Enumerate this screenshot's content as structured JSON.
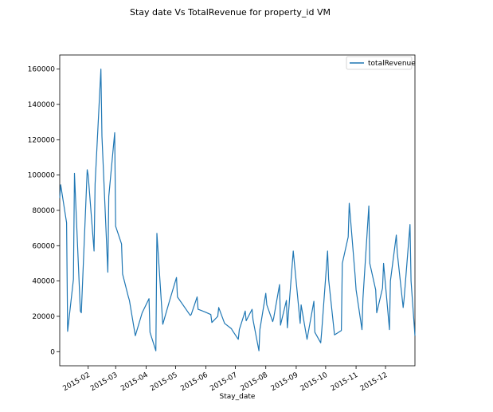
{
  "chart_data": {
    "type": "line",
    "title": "Stay date Vs TotalRevenue for property_id VM",
    "xlabel": "Stay_date",
    "ylabel": "",
    "xlim": [
      "2015-01-03",
      "2015-12-31"
    ],
    "ylim": [
      -8000,
      168000
    ],
    "yticks": [
      0,
      20000,
      40000,
      60000,
      80000,
      100000,
      120000,
      140000,
      160000
    ],
    "xticks": [
      {
        "date": "2015-02-01",
        "label": "2015-02"
      },
      {
        "date": "2015-03-01",
        "label": "2015-03"
      },
      {
        "date": "2015-04-01",
        "label": "2015-04"
      },
      {
        "date": "2015-05-01",
        "label": "2015-05"
      },
      {
        "date": "2015-06-01",
        "label": "2015-06"
      },
      {
        "date": "2015-07-01",
        "label": "2015-07"
      },
      {
        "date": "2015-08-01",
        "label": "2015-08"
      },
      {
        "date": "2015-09-01",
        "label": "2015-09"
      },
      {
        "date": "2015-10-01",
        "label": "2015-10"
      },
      {
        "date": "2015-11-01",
        "label": "2015-11"
      },
      {
        "date": "2015-12-01",
        "label": "2015-12"
      }
    ],
    "legend": {
      "placement": "top-right"
    },
    "grid": false,
    "series": [
      {
        "name": "totalRevenue",
        "color": "#1f77b4",
        "x": [
          "2015-01-03",
          "2015-01-04",
          "2015-01-10",
          "2015-01-11",
          "2015-01-17",
          "2015-01-18",
          "2015-01-24",
          "2015-01-25",
          "2015-01-31",
          "2015-02-01",
          "2015-02-07",
          "2015-02-08",
          "2015-02-14",
          "2015-02-15",
          "2015-02-21",
          "2015-02-22",
          "2015-02-28",
          "2015-03-01",
          "2015-03-07",
          "2015-03-08",
          "2015-03-14",
          "2015-03-15",
          "2015-03-21",
          "2015-03-28",
          "2015-04-04",
          "2015-04-05",
          "2015-04-11",
          "2015-04-12",
          "2015-04-18",
          "2015-04-25",
          "2015-05-02",
          "2015-05-03",
          "2015-05-16",
          "2015-05-17",
          "2015-05-23",
          "2015-05-24",
          "2015-05-31",
          "2015-06-06",
          "2015-06-07",
          "2015-06-13",
          "2015-06-14",
          "2015-06-20",
          "2015-06-27",
          "2015-06-28",
          "2015-07-04",
          "2015-07-05",
          "2015-07-11",
          "2015-07-12",
          "2015-07-18",
          "2015-07-19",
          "2015-07-25",
          "2015-07-26",
          "2015-08-01",
          "2015-08-02",
          "2015-08-08",
          "2015-08-09",
          "2015-08-15",
          "2015-08-16",
          "2015-08-22",
          "2015-08-23",
          "2015-08-29",
          "2015-09-05",
          "2015-09-06",
          "2015-09-12",
          "2015-09-19",
          "2015-09-20",
          "2015-09-26",
          "2015-09-27",
          "2015-10-03",
          "2015-10-04",
          "2015-10-10",
          "2015-10-17",
          "2015-10-18",
          "2015-10-24",
          "2015-10-25",
          "2015-10-31",
          "2015-11-01",
          "2015-11-07",
          "2015-11-08",
          "2015-11-14",
          "2015-11-15",
          "2015-11-21",
          "2015-11-22",
          "2015-11-28",
          "2015-11-29",
          "2015-12-05",
          "2015-12-06",
          "2015-12-12",
          "2015-12-13",
          "2015-12-19",
          "2015-12-20",
          "2015-12-26",
          "2015-12-27",
          "2015-12-31"
        ],
        "values": [
          87000,
          94500,
          73000,
          11500,
          41000,
          101000,
          23000,
          22000,
          103000,
          100000,
          57000,
          95000,
          160000,
          122000,
          45000,
          88000,
          124000,
          71000,
          61000,
          44000,
          31000,
          29000,
          9000,
          22000,
          30000,
          11000,
          500,
          67000,
          15500,
          29000,
          42000,
          31000,
          20500,
          21000,
          31000,
          24000,
          22500,
          21000,
          16500,
          20000,
          25000,
          16000,
          13000,
          12000,
          7000,
          12500,
          23000,
          17500,
          24000,
          18000,
          500,
          12500,
          33000,
          26500,
          17000,
          19000,
          38000,
          15000,
          29000,
          13500,
          57000,
          16000,
          26500,
          7000,
          28500,
          11000,
          5000,
          12000,
          57000,
          41000,
          9500,
          12000,
          50000,
          65000,
          84000,
          43500,
          35000,
          12500,
          30000,
          82500,
          50000,
          35000,
          22000,
          36000,
          50000,
          12500,
          40000,
          66000,
          56000,
          25000,
          30000,
          72000,
          40000,
          9000
        ]
      }
    ]
  }
}
